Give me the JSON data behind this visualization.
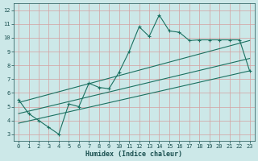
{
  "xlabel": "Humidex (Indice chaleur)",
  "background_color": "#cce8e8",
  "grid_color": "#b8d4d4",
  "line_color": "#1a7060",
  "xlim": [
    -0.5,
    23.5
  ],
  "ylim": [
    2.5,
    12.5
  ],
  "xticks": [
    0,
    1,
    2,
    3,
    4,
    5,
    6,
    7,
    8,
    9,
    10,
    11,
    12,
    13,
    14,
    15,
    16,
    17,
    18,
    19,
    20,
    21,
    22,
    23
  ],
  "yticks": [
    3,
    4,
    5,
    6,
    7,
    8,
    9,
    10,
    11,
    12
  ],
  "main_x": [
    0,
    1,
    2,
    3,
    4,
    5,
    6,
    7,
    8,
    9,
    10,
    11,
    12,
    13,
    14,
    15,
    16,
    17,
    18,
    19,
    20,
    21,
    22,
    23
  ],
  "main_y": [
    5.5,
    4.5,
    4.0,
    3.5,
    3.0,
    5.2,
    5.0,
    6.7,
    6.4,
    6.3,
    7.5,
    9.0,
    10.8,
    10.1,
    11.65,
    10.5,
    10.4,
    9.8,
    9.85,
    9.85,
    9.85,
    9.85,
    9.85,
    7.6
  ],
  "line1_x": [
    0,
    23
  ],
  "line1_y": [
    5.3,
    9.8
  ],
  "line2_x": [
    0,
    23
  ],
  "line2_y": [
    3.8,
    7.6
  ],
  "line3_x": [
    0,
    23
  ],
  "line3_y": [
    4.5,
    8.5
  ]
}
